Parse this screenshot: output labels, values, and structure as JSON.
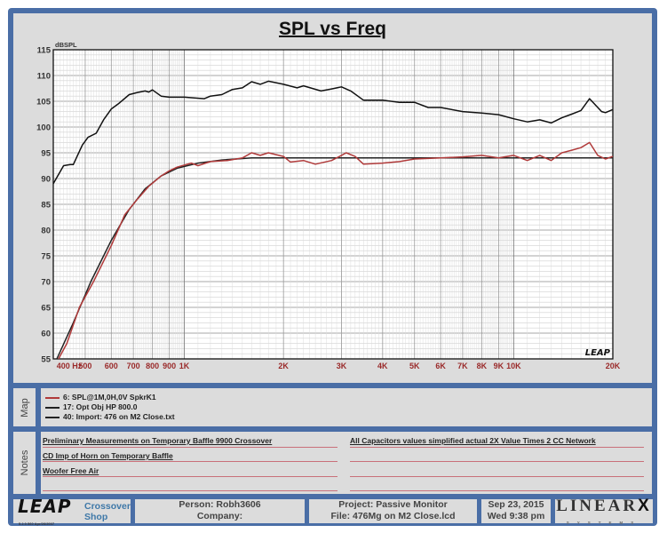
{
  "chart": {
    "title": "SPL vs Freq",
    "y_unit": "dBSPL",
    "watermark": "LEAP"
  },
  "chart_data": {
    "type": "line",
    "title": "SPL vs Freq",
    "xlabel": "Hz",
    "ylabel": "dBSPL",
    "xscale": "log",
    "xlim": [
      400,
      20000
    ],
    "ylim": [
      55,
      115
    ],
    "grid": true,
    "x_tick_labels": [
      "400 Hz",
      "500",
      "600",
      "700",
      "800",
      "900",
      "1K",
      "2K",
      "3K",
      "4K",
      "5K",
      "6K",
      "7K",
      "8K",
      "9K",
      "10K",
      "20K"
    ],
    "x_ticks": [
      400,
      500,
      600,
      700,
      800,
      900,
      1000,
      2000,
      3000,
      4000,
      5000,
      6000,
      7000,
      8000,
      9000,
      10000,
      20000
    ],
    "y_ticks": [
      55,
      60,
      65,
      70,
      75,
      80,
      85,
      90,
      95,
      100,
      105,
      110,
      115
    ],
    "legend_position": "map panel below chart",
    "series": [
      {
        "name": "6: SPL@1M,0H,0V SpkrK1",
        "color": "#b03a3a",
        "x": [
          415,
          440,
          480,
          530,
          600,
          660,
          720,
          780,
          850,
          900,
          950,
          1050,
          1100,
          1200,
          1350,
          1500,
          1600,
          1700,
          1800,
          2000,
          2100,
          2300,
          2500,
          2800,
          3000,
          3100,
          3300,
          3500,
          4000,
          4500,
          5000,
          6000,
          7000,
          8000,
          9000,
          10000,
          11000,
          12000,
          13000,
          14000,
          15000,
          16000,
          17000,
          18000,
          19000,
          20000
        ],
        "y": [
          55,
          58,
          65,
          70,
          77,
          83,
          86,
          88.5,
          90.5,
          91.5,
          92.2,
          93,
          92.5,
          93.3,
          93.5,
          94,
          95,
          94.5,
          95,
          94.3,
          93.2,
          93.5,
          92.8,
          93.5,
          94.5,
          95,
          94.3,
          92.8,
          93,
          93.3,
          93.8,
          94,
          94.2,
          94.5,
          94,
          94.5,
          93.5,
          94.5,
          93.5,
          95,
          95.5,
          96,
          97,
          94.5,
          93.8,
          94.3
        ]
      },
      {
        "name": "17: Opt Obj HP  800.0",
        "color": "#222222",
        "x": [
          410,
          460,
          520,
          600,
          680,
          760,
          850,
          950,
          1100,
          1300,
          1600,
          2000,
          5000,
          10000,
          20000
        ],
        "y": [
          55,
          62,
          70,
          78,
          84,
          88,
          90.5,
          92,
          93,
          93.6,
          94,
          94,
          94,
          94,
          94
        ]
      },
      {
        "name": "40: Import: 476 on M2 Close.txt",
        "color": "#111111",
        "x": [
          400,
          430,
          450,
          460,
          490,
          510,
          540,
          570,
          600,
          630,
          680,
          720,
          760,
          780,
          800,
          850,
          900,
          1000,
          1150,
          1200,
          1300,
          1400,
          1500,
          1600,
          1700,
          1800,
          2000,
          2200,
          2300,
          2600,
          2800,
          3000,
          3200,
          3500,
          4000,
          4500,
          5000,
          5500,
          6000,
          7000,
          8000,
          9000,
          10000,
          11000,
          12000,
          13000,
          14000,
          15000,
          16000,
          17000,
          18500,
          19000,
          20000
        ],
        "y": [
          89,
          92.5,
          92.7,
          92.7,
          96.5,
          98,
          98.8,
          101.5,
          103.5,
          104.5,
          106.3,
          106.7,
          107,
          106.8,
          107.2,
          106,
          105.8,
          105.8,
          105.5,
          106,
          106.3,
          107.3,
          107.6,
          108.8,
          108.3,
          108.9,
          108.3,
          107.6,
          108,
          107,
          107.4,
          107.8,
          107,
          105.2,
          105.2,
          104.8,
          104.8,
          103.8,
          103.8,
          103,
          102.7,
          102.4,
          101.6,
          101,
          101.4,
          100.8,
          101.8,
          102.5,
          103.2,
          105.5,
          103,
          102.8,
          103.4
        ]
      }
    ]
  },
  "map": {
    "tab_label": "Map",
    "items": [
      {
        "label": "6: SPL@1M,0H,0V SpkrK1",
        "color": "#b03a3a"
      },
      {
        "label": "17: Opt Obj HP  800.0",
        "color": "#222222"
      },
      {
        "label": "40: Import: 476 on M2 Close.txt",
        "color": "#222222"
      }
    ]
  },
  "notes": {
    "tab_label": "Notes",
    "left": [
      "Preliminary Measurements on Temporary Baffle  9900 Crossover",
      "CD Imp of Horn on Temporary Baffle",
      "Woofer Free Air",
      ""
    ],
    "right": [
      "All Capacitors values simplified actual 2X Value Times 2 CC Network",
      "",
      "",
      ""
    ]
  },
  "footer": {
    "logo": "LEAP",
    "version": "5.2.0.560   Apr/26/2007",
    "shop_line1": "Crossover",
    "shop_line2": "Shop",
    "person": "Person: Robh3606",
    "company": "Company:",
    "project": "Project: Passive Monitor",
    "file": "File: 476Mg on M2 Close.lcd",
    "date": "Sep 23, 2015",
    "time": "Wed  9:38 pm",
    "brand": "LINEAR",
    "brand_x": "X",
    "brand_sub": "SYSTEMS"
  }
}
